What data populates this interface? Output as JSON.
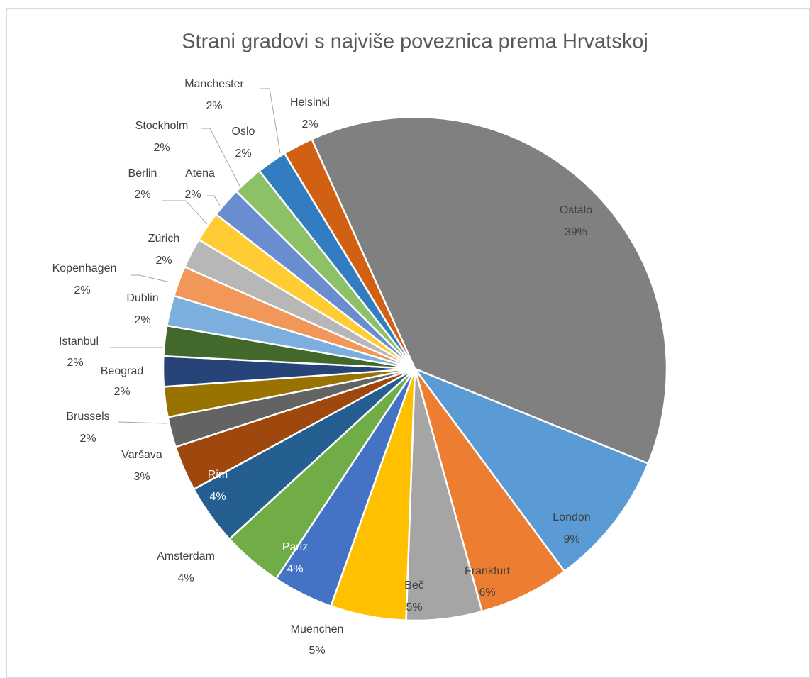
{
  "chart_data": {
    "type": "pie",
    "title": "Strani gradovi s najviše poveznica prema Hrvatskoj",
    "categories": [
      "Ostalo",
      "London",
      "Frankfurt",
      "Beč",
      "Muenchen",
      "Pariz",
      "Amsterdam",
      "Rim",
      "Varšava",
      "Brussels",
      "Beograd",
      "Istanbul",
      "Dublin",
      "Kopenhagen",
      "Zürich",
      "Berlin",
      "Atena",
      "Stockholm",
      "Oslo",
      "Manchester",
      "Helsinki"
    ],
    "values": [
      39,
      9,
      6,
      5,
      5,
      4,
      4,
      4,
      3,
      2,
      2,
      2,
      2,
      2,
      2,
      2,
      2,
      2,
      2,
      2,
      2
    ],
    "value_labels": [
      "39%",
      "9%",
      "6%",
      "5%",
      "5%",
      "4%",
      "4%",
      "4%",
      "3%",
      "2%",
      "2%",
      "2%",
      "2%",
      "2%",
      "2%",
      "2%",
      "2%",
      "2%",
      "2%",
      "2%",
      "2%"
    ],
    "colors": [
      "#808080",
      "#5b9bd5",
      "#ed7d31",
      "#a5a5a5",
      "#ffc000",
      "#4472c4",
      "#70ad47",
      "#255e91",
      "#9e480e",
      "#636363",
      "#997300",
      "#264478",
      "#43682b",
      "#7cafdd",
      "#f1975a",
      "#b7b7b7",
      "#ffcd33",
      "#698ed0",
      "#8cc168",
      "#327dc2",
      "#d26012"
    ]
  }
}
